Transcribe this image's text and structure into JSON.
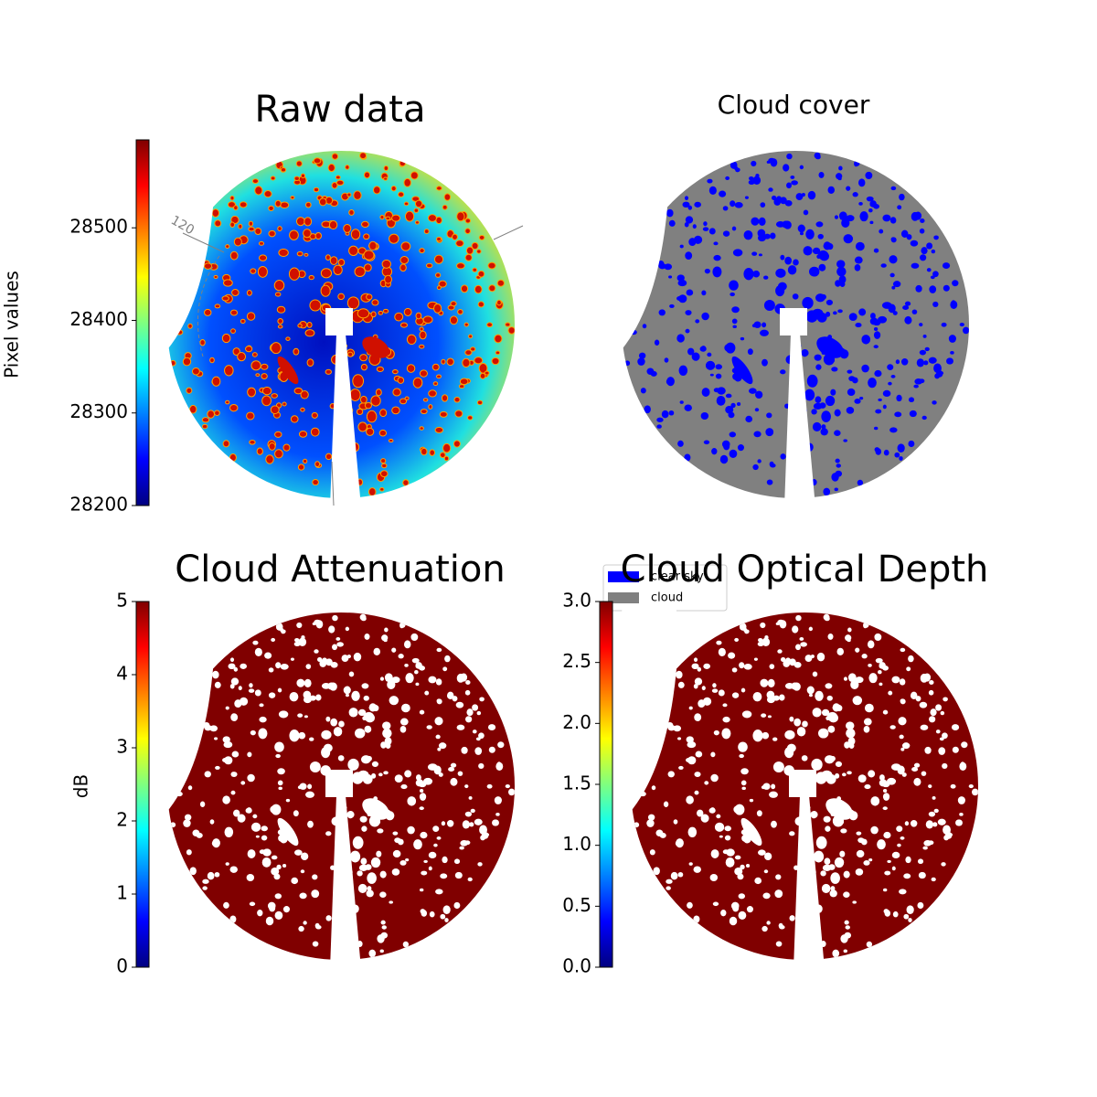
{
  "chart_data": [
    {
      "type": "image",
      "title": "Raw data",
      "annotation": "120",
      "colorbar": {
        "label": "Pixel values",
        "colormap": "jet",
        "lim": [
          28200,
          28595
        ],
        "ticks": [
          28200,
          28300,
          28400,
          28500
        ]
      }
    },
    {
      "type": "image",
      "title": "Cloud cover",
      "series": [
        {
          "name": "clear sky",
          "color": "#0000ff"
        },
        {
          "name": "cloud",
          "color": "#808080"
        }
      ]
    },
    {
      "type": "image",
      "title": "Cloud Attenuation",
      "colorbar": {
        "label": "dB",
        "colormap": "jet",
        "lim": [
          0,
          5
        ],
        "ticks": [
          0,
          1,
          2,
          3,
          4,
          5
        ]
      }
    },
    {
      "type": "image",
      "title": "Cloud Optical Depth",
      "colorbar": {
        "colormap": "jet",
        "lim": [
          0,
          3
        ],
        "ticks": [
          {
            "value": 0,
            "label": "0.0"
          },
          0.5,
          {
            "value": 1,
            "label": "1.0"
          },
          1.5,
          {
            "value": 2,
            "label": "2.0"
          },
          2.5,
          {
            "value": 3,
            "label": "3.0"
          }
        ]
      }
    }
  ]
}
